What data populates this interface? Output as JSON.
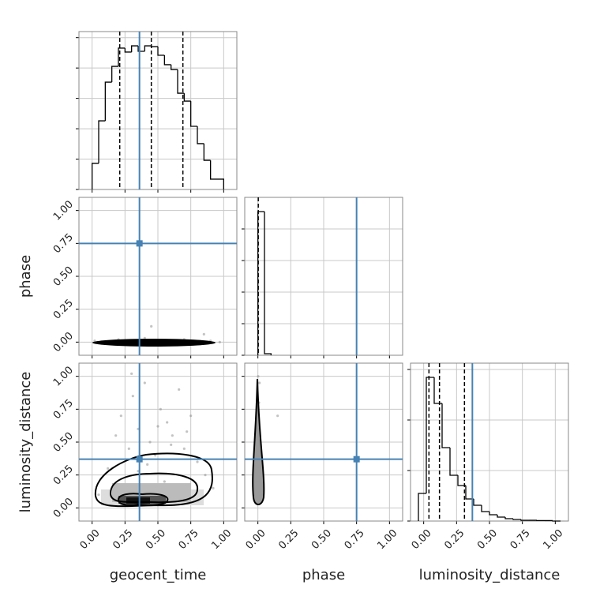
{
  "chart_data": {
    "type": "corner",
    "parameters": [
      "geocent_time",
      "phase",
      "luminosity_distance"
    ],
    "truths": [
      0.36,
      0.75,
      0.37
    ],
    "truth_color": "#4682b4",
    "xlim": [
      -0.1,
      1.1
    ],
    "ticks": [
      {
        "value": 0,
        "label": "0.00"
      },
      {
        "value": 0.25,
        "label": "0.25"
      },
      {
        "value": 0.5,
        "label": "0.50"
      },
      {
        "value": 0.75,
        "label": "0.75"
      },
      {
        "value": 1,
        "label": "1.00"
      }
    ],
    "grid": true,
    "histograms": [
      {
        "bins": [
          0,
          0.05,
          0.1,
          0.15,
          0.2,
          0.25,
          0.3,
          0.35,
          0.4,
          0.45,
          0.5,
          0.55,
          0.6,
          0.65,
          0.7,
          0.75,
          0.8,
          0.85,
          0.9,
          0.95,
          1.0
        ],
        "values": [
          172,
          452,
          707,
          811,
          931,
          905,
          946,
          910,
          946,
          941,
          884,
          822,
          790,
          634,
          582,
          416,
          302,
          192,
          68,
          68
        ],
        "ylim": [
          0,
          1040
        ],
        "yticks": [
          0,
          200,
          400,
          600,
          800,
          1000
        ],
        "quantiles": [
          0.21,
          0.45,
          0.69
        ]
      },
      {
        "bins": [
          0,
          0.05,
          0.1
        ],
        "values": [
          910,
          10
        ],
        "ylim": [
          0,
          1000
        ],
        "yticks": [
          0,
          200,
          400,
          600,
          800
        ],
        "quantiles": [
          0.003
        ]
      },
      {
        "bins": [
          -0.04,
          0.02,
          0.08,
          0.14,
          0.2,
          0.26,
          0.32,
          0.38,
          0.44,
          0.5,
          0.56,
          0.62,
          0.68,
          0.74,
          0.8,
          0.86,
          0.92,
          0.98,
          1.04
        ],
        "values": [
          175,
          910,
          745,
          465,
          290,
          225,
          140,
          100,
          60,
          40,
          25,
          15,
          10,
          5,
          5,
          3,
          3,
          0
        ],
        "ylim": [
          0,
          1000
        ],
        "yticks": [
          0,
          320,
          640,
          960
        ],
        "quantiles": [
          0.04,
          0.12,
          0.31
        ]
      }
    ],
    "pairs": [
      {
        "x": [
          0.02,
          0.1,
          0.2,
          0.3,
          0.4,
          0.5,
          0.6,
          0.7,
          0.8,
          0.9,
          0.97,
          0.45,
          0.85
        ],
        "y": [
          0.01,
          0.0,
          0.02,
          0.0,
          0.03,
          0.0,
          0.01,
          0.02,
          0.0,
          0.01,
          0.0,
          0.12,
          0.06
        ]
      },
      {
        "x": [
          0.05,
          0.12,
          0.18,
          0.22,
          0.28,
          0.31,
          0.35,
          0.4,
          0.44,
          0.48,
          0.52,
          0.57,
          0.61,
          0.66,
          0.7,
          0.75,
          0.8,
          0.86,
          0.92,
          0.15,
          0.25,
          0.45,
          0.55,
          0.65,
          0.35,
          0.5,
          0.72,
          0.3,
          0.6,
          0.42
        ],
        "y": [
          0.1,
          0.3,
          0.55,
          0.7,
          0.45,
          0.85,
          0.6,
          0.95,
          0.5,
          0.4,
          0.75,
          0.65,
          0.55,
          0.9,
          0.45,
          0.7,
          0.35,
          0.25,
          0.15,
          0.05,
          0.15,
          0.08,
          0.2,
          0.12,
          0.28,
          0.62,
          0.58,
          1.02,
          0.48,
          0.33
        ]
      },
      {
        "x": [
          0,
          0.005,
          0.01,
          0,
          0.003,
          0.008,
          0.012,
          0.002,
          0.15,
          0.02,
          0.006,
          0
        ],
        "y": [
          0.05,
          0.2,
          0.35,
          0.5,
          0.65,
          0.8,
          0.95,
          1.0,
          0.7,
          0.1,
          0.45,
          0.3
        ]
      }
    ]
  }
}
